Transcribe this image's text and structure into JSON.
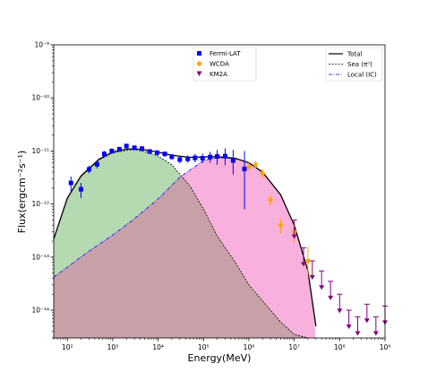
{
  "chart_data": {
    "type": "scatter",
    "x_scale": "log",
    "y_scale": "log",
    "xlabel": "Energy(MeV)",
    "ylabel": "Flux(ergcm⁻²s⁻¹)",
    "xlim": [
      50,
      1000000000
    ],
    "ylim": [
      3e-15,
      1e-09
    ],
    "x_ticks": [
      {
        "value": 100,
        "label": "10²"
      },
      {
        "value": 1000,
        "label": "10³"
      },
      {
        "value": 10000,
        "label": "10⁴"
      },
      {
        "value": 100000,
        "label": "10⁵"
      },
      {
        "value": 1000000,
        "label": "10⁶"
      },
      {
        "value": 10000000,
        "label": "10⁷"
      },
      {
        "value": 100000000,
        "label": "10⁸"
      },
      {
        "value": 1000000000,
        "label": "10⁹"
      }
    ],
    "y_ticks": [
      {
        "value": 1e-14,
        "label": "10⁻¹⁴"
      },
      {
        "value": 1e-13,
        "label": "10⁻¹³"
      },
      {
        "value": 1e-12,
        "label": "10⁻¹²"
      },
      {
        "value": 1e-11,
        "label": "10⁻¹¹"
      },
      {
        "value": 1e-10,
        "label": "10⁻¹⁰"
      },
      {
        "value": 1e-09,
        "label": "10⁻⁹"
      }
    ],
    "legend_left": {
      "placement": "top-center",
      "entries": [
        {
          "label": "Fermi-LAT",
          "marker": "square",
          "color": "#0000ff"
        },
        {
          "label": "WCDA",
          "marker": "circle",
          "color": "#ffa500"
        },
        {
          "label": "KM2A",
          "marker": "triangle-down",
          "color": "#800080"
        }
      ]
    },
    "legend_right": {
      "placement": "top-right",
      "entries": [
        {
          "label": "Total",
          "style": "solid",
          "color": "#000000"
        },
        {
          "label": "Sea (π⁰)",
          "style": "dashed",
          "color": "#000000"
        },
        {
          "label": "Local (IC)",
          "style": "dashdot",
          "color": "#0000ff"
        }
      ]
    },
    "fill_colors": {
      "sea": "#b5d9b0",
      "local": "#f8b0dc",
      "overlap": "#c8a0a8"
    },
    "series": [
      {
        "name": "Fermi-LAT",
        "color": "#0000ff",
        "x": [
          120,
          200,
          300,
          450,
          650,
          950,
          1400,
          2000,
          3000,
          4400,
          6500,
          9500,
          14000,
          20000,
          30000,
          45000,
          65000,
          95000,
          140000,
          200000,
          300000,
          450000,
          800000
        ],
        "y": [
          2.5e-12,
          1.9e-12,
          4.5e-12,
          5.6e-12,
          8.8e-12,
          1e-11,
          1.08e-11,
          1.24e-11,
          1.15e-11,
          1.11e-11,
          9.8e-12,
          9.3e-12,
          8.8e-12,
          7.8e-12,
          6.9e-12,
          7.1e-12,
          7.4e-12,
          7.3e-12,
          7.7e-12,
          7.9e-12,
          8e-12,
          6.6e-12,
          4.6e-12
        ],
        "y_low": [
          1.7e-12,
          1.3e-12,
          3.8e-12,
          4.7e-12,
          7.6e-12,
          8.9e-12,
          9.7e-12,
          1.12e-11,
          1.04e-11,
          1e-11,
          8.8e-12,
          8.3e-12,
          7.8e-12,
          6.8e-12,
          5.9e-12,
          6e-12,
          6.1e-12,
          5.9e-12,
          6e-12,
          5.5e-12,
          5.4e-12,
          3.6e-12,
          8e-13
        ],
        "y_high": [
          3.3e-12,
          2.5e-12,
          5.3e-12,
          6.6e-12,
          1e-11,
          1.12e-11,
          1.2e-11,
          1.37e-11,
          1.27e-11,
          1.22e-11,
          1.08e-11,
          1.03e-11,
          9.8e-12,
          8.8e-12,
          8e-12,
          8.3e-12,
          8.8e-12,
          8.9e-12,
          9.7e-12,
          1.05e-11,
          1.12e-11,
          1.05e-11,
          1e-11
        ]
      },
      {
        "name": "WCDA",
        "color": "#ffa500",
        "x": [
          1000000,
          1400000,
          2000000,
          3000000,
          5000000,
          10000000,
          20000000
        ],
        "y": [
          5e-12,
          5.5e-12,
          3.8e-12,
          1.2e-12,
          4e-13,
          3e-13,
          8.5e-14
        ],
        "y_low": [
          4.2e-12,
          4.6e-12,
          3.1e-12,
          9.5e-13,
          2.8e-13,
          1.9e-13,
          4e-14
        ],
        "y_high": [
          6e-12,
          6.6e-12,
          4.6e-12,
          1.5e-12,
          5.5e-13,
          4.4e-13,
          1.6e-13
        ]
      },
      {
        "name": "KM2A",
        "color": "#800080",
        "x": [
          10000000,
          16000000,
          25000000,
          40000000,
          63000000,
          100000000,
          160000000,
          250000000,
          400000000,
          630000000,
          1000000000
        ],
        "y": [
          5e-13,
          1.5e-13,
          8.5e-14,
          5.5e-14,
          3.5e-14,
          2e-14,
          1e-14,
          7.5e-15,
          1.3e-14,
          7.5e-15,
          1.2e-14
        ],
        "upper_limit": true
      },
      {
        "name": "Total",
        "style": "solid",
        "color": "#000000",
        "x": [
          50,
          100,
          200,
          500,
          1000,
          2000,
          3000,
          5000,
          10000,
          20000,
          50000,
          100000,
          200000,
          500000,
          1000000,
          2000000,
          5000000,
          10000000,
          20000000,
          30000000
        ],
        "y": [
          2.2e-13,
          1.3e-12,
          3.4e-12,
          7e-12,
          9.6e-12,
          1.08e-11,
          1.1e-11,
          1.05e-11,
          9.5e-12,
          8.3e-12,
          7.6e-12,
          7.7e-12,
          7.8e-12,
          7.3e-12,
          6e-12,
          4e-12,
          1.5e-12,
          4e-13,
          5.5e-14,
          5e-15
        ]
      },
      {
        "name": "Sea (π⁰)",
        "style": "dashed",
        "color": "#000000",
        "x": [
          50,
          100,
          200,
          500,
          1000,
          2000,
          3000,
          5000,
          10000,
          20000,
          50000,
          100000,
          200000,
          500000,
          1000000,
          2000000,
          5000000,
          10000000,
          20000000
        ],
        "y": [
          2.2e-13,
          1.28e-12,
          3.3e-12,
          6.8e-12,
          9.2e-12,
          1.02e-11,
          1.05e-11,
          9.8e-12,
          8e-12,
          5.5e-12,
          2.2e-12,
          8e-13,
          2.5e-13,
          8e-14,
          3e-14,
          1.5e-14,
          6e-15,
          3.5e-15,
          3e-15
        ]
      },
      {
        "name": "Local (IC)",
        "style": "dashdot",
        "color": "#0000ff",
        "x": [
          50,
          100,
          300,
          1000,
          3000,
          10000,
          30000,
          100000,
          200000,
          500000,
          1000000,
          2000000,
          5000000,
          10000000,
          20000000,
          30000000
        ],
        "y": [
          4.2e-14,
          6.5e-14,
          1.3e-13,
          2.6e-13,
          5.3e-13,
          1.25e-12,
          3.2e-12,
          6.6e-12,
          7.5e-12,
          7.2e-12,
          6e-12,
          4e-12,
          1.5e-12,
          4e-13,
          5.5e-14,
          5e-15
        ]
      }
    ]
  }
}
